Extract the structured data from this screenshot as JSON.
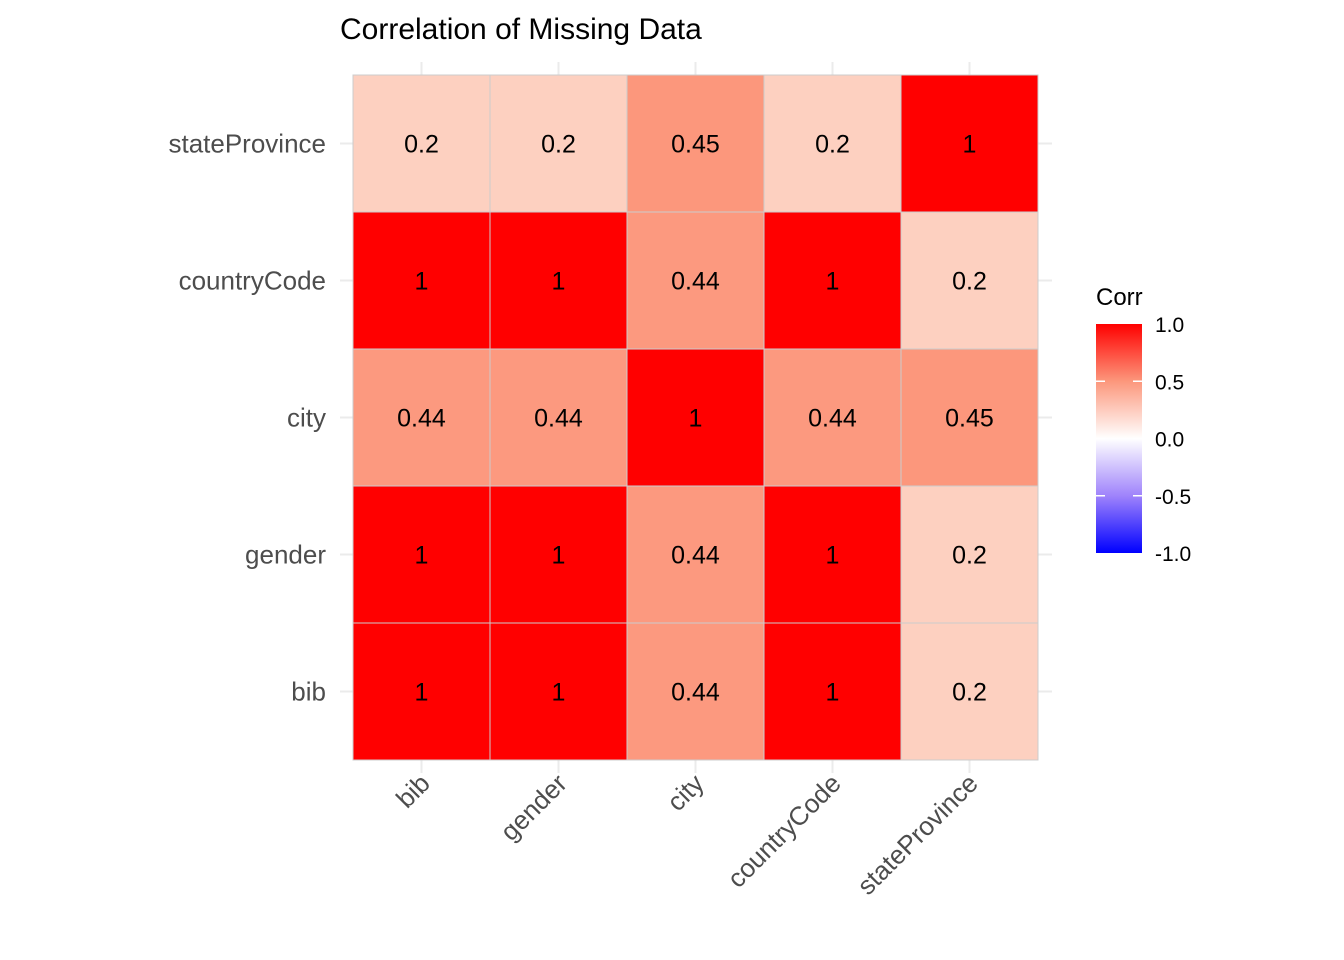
{
  "chart_data": {
    "type": "heatmap",
    "title": "Correlation of Missing Data",
    "x_categories": [
      "bib",
      "gender",
      "city",
      "countryCode",
      "stateProvince"
    ],
    "y_categories": [
      "bib",
      "gender",
      "city",
      "countryCode",
      "stateProvince"
    ],
    "values": [
      [
        1,
        1,
        0.44,
        1,
        0.2
      ],
      [
        1,
        1,
        0.44,
        1,
        0.2
      ],
      [
        0.44,
        0.44,
        1,
        0.44,
        0.45
      ],
      [
        1,
        1,
        0.44,
        1,
        0.2
      ],
      [
        0.2,
        0.2,
        0.45,
        0.2,
        1
      ]
    ],
    "legend": {
      "title": "Corr",
      "ticks": [
        "1.0",
        "0.5",
        "0.0",
        "-0.5",
        "-1.0"
      ],
      "tick_values": [
        1,
        0.5,
        0,
        -0.5,
        -1
      ],
      "range": [
        -1,
        1
      ],
      "colors": {
        "low": "#0000FF",
        "mid": "#FFFFFF",
        "high": "#FF0000"
      },
      "placement": "right"
    },
    "grid": true
  }
}
